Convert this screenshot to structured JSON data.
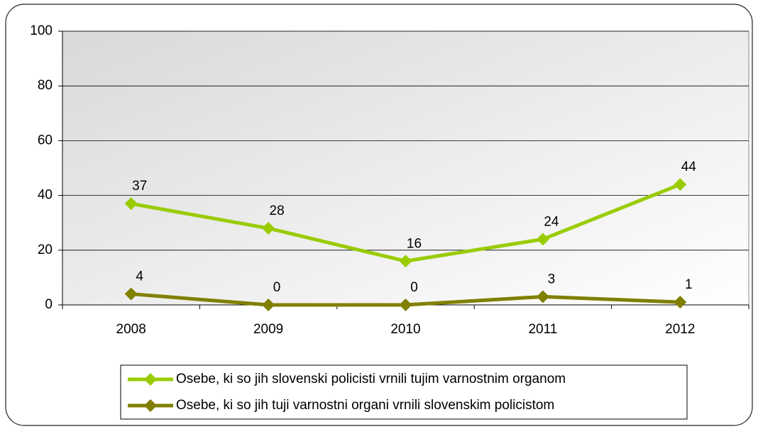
{
  "chart_data": {
    "type": "line",
    "categories": [
      "2008",
      "2009",
      "2010",
      "2011",
      "2012"
    ],
    "series": [
      {
        "name": "Osebe, ki so jih slovenski policisti vrnili tujim varnostnim organom",
        "color": "#99cc00",
        "values": [
          37,
          28,
          16,
          24,
          44
        ]
      },
      {
        "name": "Osebe, ki so jih tuji varnostni organi vrnili slovenskim policistom",
        "color": "#808000",
        "values": [
          4,
          0,
          0,
          3,
          1
        ]
      }
    ],
    "ylim": [
      0,
      100
    ],
    "yticks": [
      0,
      20,
      40,
      60,
      80,
      100
    ],
    "grid": true,
    "legend": "bottom"
  }
}
